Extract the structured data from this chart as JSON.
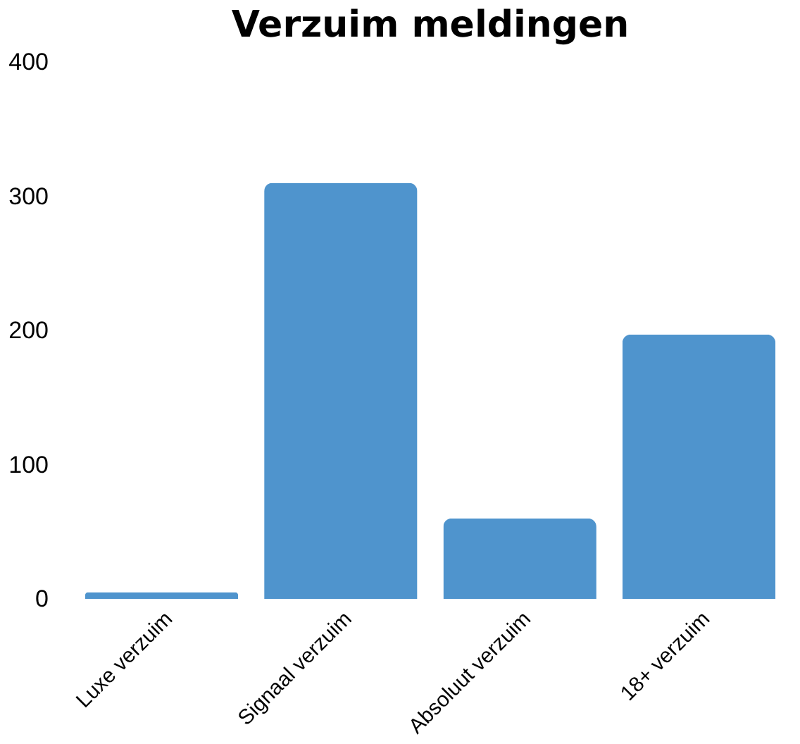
{
  "chart_data": {
    "type": "bar",
    "title": "Verzuim meldingen",
    "categories": [
      "Luxe verzuim",
      "Signaal verzuim",
      "Absoluut verzuim",
      "18+ verzuim"
    ],
    "values": [
      5,
      310,
      60,
      197
    ],
    "color": "#4f94cd",
    "ylim": [
      0,
      400
    ],
    "yticks": [
      0,
      100,
      200,
      300,
      400
    ],
    "grid": false
  }
}
